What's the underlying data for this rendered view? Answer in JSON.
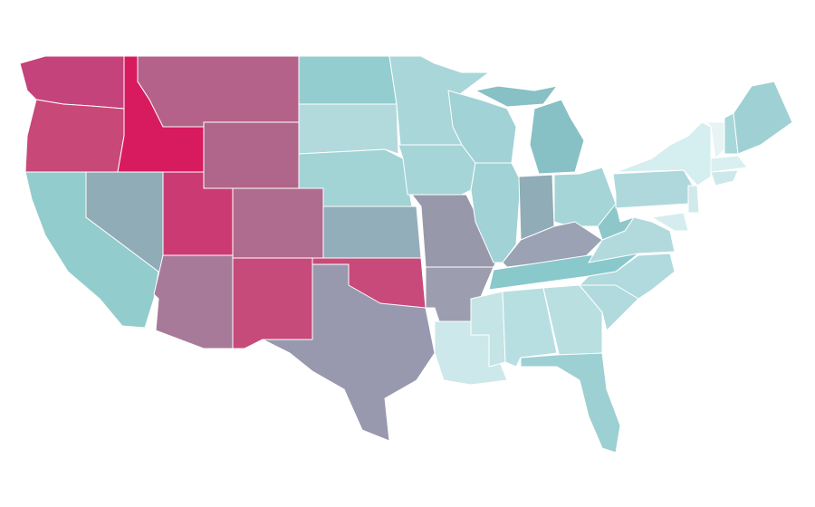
{
  "regions": [
    {
      "color": "#c4437a"
    },
    {
      "color": "#c84878"
    },
    {
      "color": "#d81b5e"
    },
    {
      "color": "#b5628a"
    },
    {
      "color": "#b0658a"
    },
    {
      "color": "#93cccc"
    },
    {
      "color": "#90acb6"
    },
    {
      "color": "#cc3a74"
    },
    {
      "color": "#a87a99"
    },
    {
      "color": "#b06c8e"
    },
    {
      "color": "#c64a7a"
    },
    {
      "color": "#94cdcf"
    },
    {
      "color": "#b2dadd"
    },
    {
      "color": "#a2d3d5"
    },
    {
      "color": "#93aebb"
    },
    {
      "color": "#c84a7a"
    },
    {
      "color": "#9898ae"
    },
    {
      "color": "#a9d6d9"
    },
    {
      "color": "#a6d5d7"
    },
    {
      "color": "#9898ab"
    },
    {
      "color": "#9d9db0"
    },
    {
      "color": "#cde8ea"
    },
    {
      "color": "#a1d2d5"
    },
    {
      "color": "#a1d2d5"
    },
    {
      "color": "#87c1c5"
    },
    {
      "color": "#90acb6"
    },
    {
      "color": "#a6d5d7"
    },
    {
      "color": "#9aa2b4"
    },
    {
      "color": "#89c8cb"
    },
    {
      "color": "#c5e4e6"
    },
    {
      "color": "#b7dfe1"
    },
    {
      "color": "#b9dfe1"
    },
    {
      "color": "#9dd0d3"
    },
    {
      "color": "#b0dadd"
    },
    {
      "color": "#b0dadd"
    },
    {
      "color": "#b2dadd"
    },
    {
      "color": "#8ec7ca"
    },
    {
      "color": "#afd8dc"
    },
    {
      "color": "#d5eef0"
    },
    {
      "color": "#e8f3f4"
    },
    {
      "color": "#a8d7da"
    },
    {
      "color": "#9fd1d4"
    },
    {
      "color": "#d9eff0"
    },
    {
      "color": "#cde8ea"
    },
    {
      "color": "#d0eaec"
    },
    {
      "color": "#d5edef"
    }
  ]
}
